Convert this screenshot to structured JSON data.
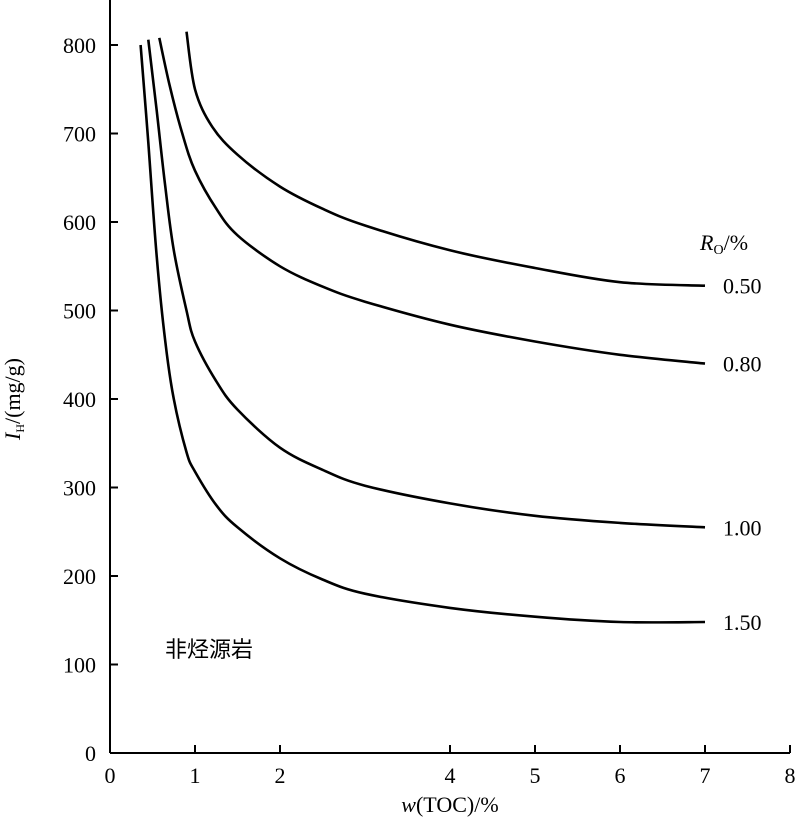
{
  "chart_data": {
    "type": "line",
    "x_axis": {
      "label_italic": "w",
      "label_rest": "(TOC)/%",
      "range": [
        0,
        8
      ],
      "ticks": [
        0,
        1,
        2,
        4,
        5,
        6,
        7,
        8
      ],
      "tick_labels": [
        "0",
        "1",
        "2",
        "4",
        "5",
        "6",
        "7",
        "8"
      ]
    },
    "y_axis": {
      "label_italic": "I",
      "label_sub": "H",
      "label_rest": "/(mg/g)",
      "range": [
        0,
        800
      ],
      "ticks": [
        0,
        100,
        200,
        300,
        400,
        500,
        600,
        700,
        800
      ],
      "tick_labels": [
        "0",
        "100",
        "200",
        "300",
        "400",
        "500",
        "600",
        "700",
        "800"
      ]
    },
    "legend_title": {
      "italic": "R",
      "sub": "O",
      "rest": "/%"
    },
    "annotation": "非烃源岩",
    "series": [
      {
        "name": "0.50",
        "x": [
          0.9,
          1.0,
          1.2,
          1.5,
          2.0,
          2.5,
          3.0,
          4.0,
          5.0,
          6.0,
          7.0
        ],
        "y": [
          815,
          750,
          708,
          676,
          640,
          615,
          596,
          568,
          548,
          532,
          528
        ]
      },
      {
        "name": "0.80",
        "x": [
          0.58,
          0.7,
          0.85,
          1.0,
          1.25,
          1.5,
          2.0,
          2.5,
          3.0,
          4.0,
          5.0,
          6.0,
          7.0
        ],
        "y": [
          808,
          755,
          700,
          658,
          615,
          585,
          550,
          527,
          510,
          484,
          465,
          450,
          440
        ]
      },
      {
        "name": "1.00",
        "x": [
          0.45,
          0.55,
          0.65,
          0.75,
          0.9,
          1.0,
          1.25,
          1.5,
          2.0,
          2.5,
          3.0,
          4.0,
          5.0,
          6.0,
          7.0
        ],
        "y": [
          806,
          725,
          640,
          568,
          500,
          465,
          420,
          388,
          345,
          320,
          302,
          282,
          268,
          260,
          255
        ]
      },
      {
        "name": "1.50",
        "x": [
          0.36,
          0.45,
          0.55,
          0.65,
          0.75,
          0.9,
          1.0,
          1.25,
          1.5,
          2.0,
          2.5,
          3.0,
          4.0,
          5.0,
          6.0,
          7.0
        ],
        "y": [
          800,
          690,
          560,
          465,
          400,
          340,
          318,
          280,
          255,
          220,
          196,
          180,
          164,
          154,
          148,
          148
        ]
      }
    ]
  }
}
